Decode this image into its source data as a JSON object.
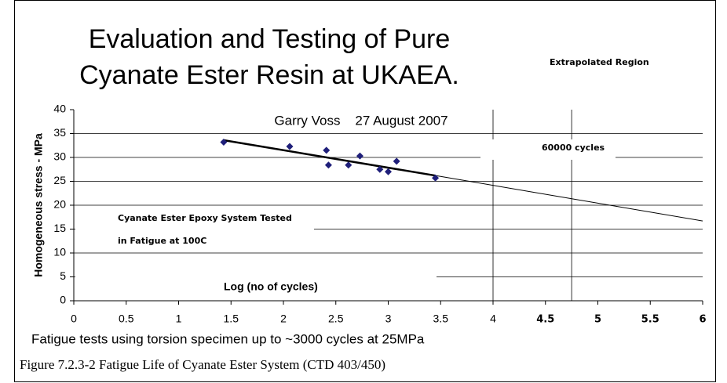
{
  "chart_data": {
    "type": "scatter",
    "title": [
      "Evaluation and Testing of Pure",
      "Cyanate Ester Resin at UKAEA."
    ],
    "subtitle": "Garry Voss    27 August 2007",
    "annotations": {
      "extrapolated": "Extrapolated Region",
      "cycles": "60000 cycles",
      "system": [
        "Cyanate Ester Epoxy System Tested",
        "in Fatigue at 100C"
      ],
      "log": "Log (no of cycles)"
    },
    "y_label": "Homogeneous stress - MPa",
    "x_label": "Fatigue tests using torsion specimen up to ~3000 cycles at 25MPa",
    "caption": "Figure 7.2.3-2 Fatigue Life of Cyanate Ester System (CTD 403/450)",
    "x": [
      1.43,
      2.06,
      2.41,
      2.43,
      2.62,
      2.73,
      2.92,
      3.0,
      3.08,
      3.45
    ],
    "values": [
      33.2,
      32.3,
      31.5,
      28.4,
      28.4,
      30.3,
      27.5,
      27.0,
      29.2,
      25.7
    ],
    "color": "#1f1f7a",
    "trend_line": {
      "x": [
        1.43,
        3.45
      ],
      "y": [
        33.6,
        26.2
      ]
    },
    "extrapolation_line": {
      "x": [
        3.45,
        6
      ],
      "y": [
        26.2,
        16.7
      ]
    },
    "vertical_lines": [
      4,
      4.75
    ],
    "xlim": [
      0,
      6
    ],
    "ylim": [
      0,
      40
    ],
    "xticks": [
      0,
      0.5,
      1,
      1.5,
      2,
      2.5,
      3,
      3.5,
      4,
      4.5,
      5,
      5.5,
      6
    ],
    "yticks": [
      0,
      5,
      10,
      15,
      20,
      25,
      30,
      35,
      40
    ],
    "grid": true
  }
}
